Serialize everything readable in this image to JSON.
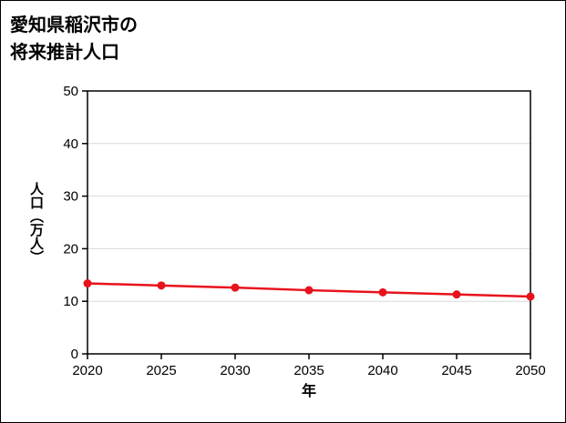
{
  "title": {
    "line1": "愛知県稲沢市の",
    "line2": "将来推計人口"
  },
  "chart_data": {
    "type": "line",
    "title": "愛知県稲沢市の将来推計人口",
    "x": [
      2020,
      2025,
      2030,
      2035,
      2040,
      2045,
      2050
    ],
    "series": [
      {
        "name": "将来推計人口",
        "values": [
          13.4,
          13.0,
          12.6,
          12.1,
          11.7,
          11.3,
          10.9
        ]
      }
    ],
    "xlabel": "年",
    "ylabel": "人口（万人）",
    "ylim": [
      0,
      50
    ],
    "ytick_step": 10,
    "xticks": [
      2020,
      2025,
      2030,
      2035,
      2040,
      2045,
      2050
    ],
    "grid": "horizontal",
    "legend": "none",
    "line_color": "#e8121c",
    "marker": "circle",
    "grid_color": "#d9d9d9",
    "axis_color": "#000000"
  }
}
